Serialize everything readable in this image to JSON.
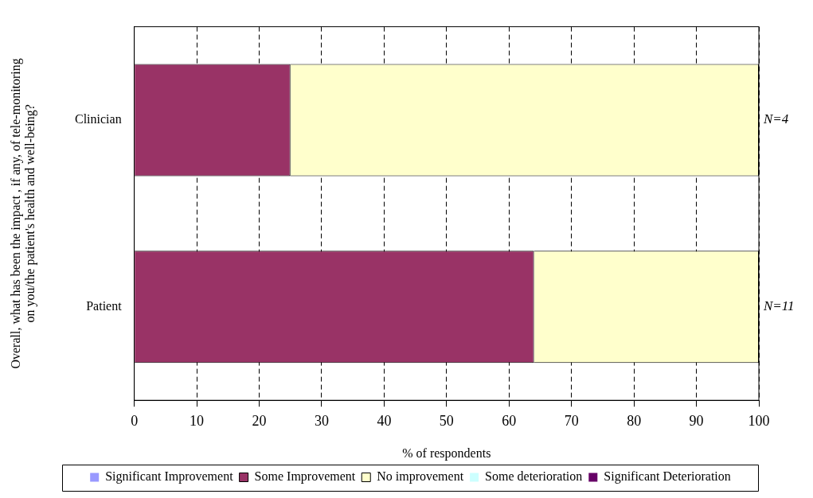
{
  "chart_data": {
    "type": "bar",
    "orientation": "horizontal",
    "stacked": true,
    "categories": [
      "Clinician",
      "Patient"
    ],
    "series": [
      {
        "name": "Significant Improvement",
        "color": "#9999ff",
        "values": [
          0,
          0
        ]
      },
      {
        "name": "Some Improvement",
        "color": "#993366",
        "values": [
          25,
          64
        ]
      },
      {
        "name": "No improvement",
        "color": "#ffffcc",
        "values": [
          75,
          36
        ]
      },
      {
        "name": "Some deterioration",
        "color": "#ccffff",
        "values": [
          0,
          0
        ]
      },
      {
        "name": "Significant Deterioration",
        "color": "#660066",
        "values": [
          0,
          0
        ]
      }
    ],
    "xlim": [
      0,
      100
    ],
    "xticks": [
      0,
      10,
      20,
      30,
      40,
      50,
      60,
      70,
      80,
      90,
      100
    ],
    "xlabel": "% of respondents",
    "ylabel": "Overall, what has been the impact , if any, of tele-monitoring on you/the patient's health and well-being?",
    "annotations": [
      "N=4",
      "N=11"
    ],
    "grid": "x",
    "legend": "bottom"
  }
}
